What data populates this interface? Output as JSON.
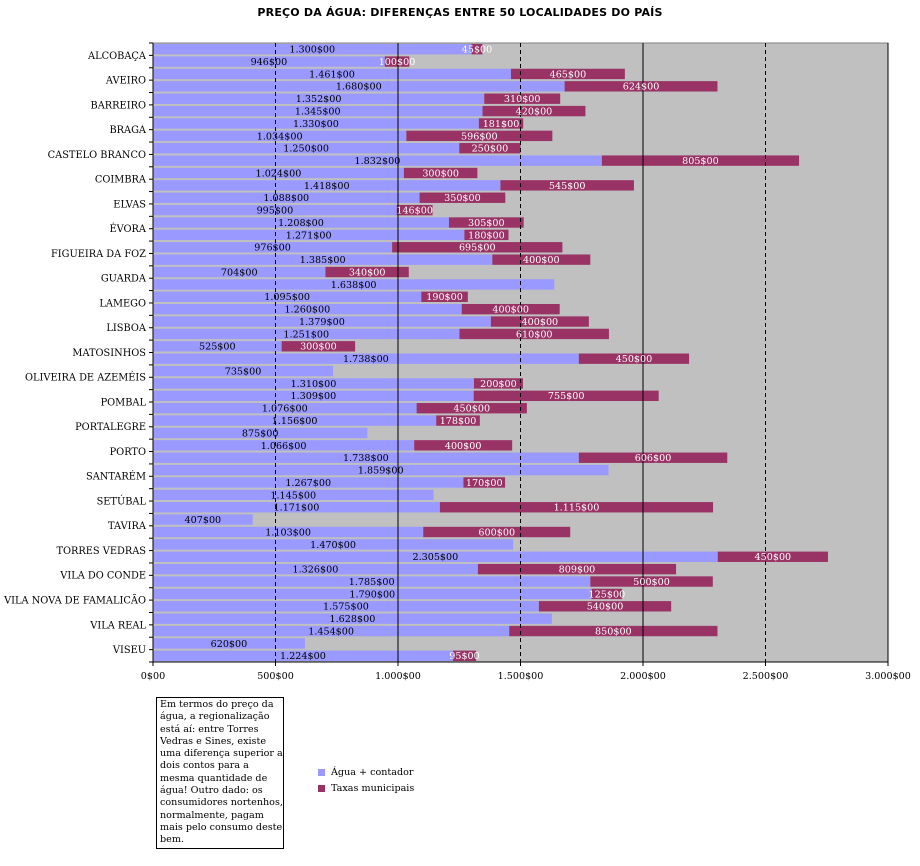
{
  "title": "PREÇO DA ÁGUA: DIFERENÇAS ENTRE 50 LOCALIDADES DO PAÍS",
  "note": "Em termos do preço da água, a regionalização está aí: entre Torres Vedras e Sines, existe uma diferença superior a dois contos para a mesma quantidade de água! Outro dado: os consumidores nortenhos, normalmente, pagam mais pelo consumo deste bem.",
  "colors": {
    "agua": "#9999ff",
    "taxas": "#993366",
    "plot_bg": "#c0c0c0"
  },
  "chart_data": {
    "type": "bar",
    "orientation": "horizontal",
    "stacked": true,
    "title": "PREÇO DA ÁGUA: DIFERENÇAS ENTRE 50 LOCALIDADES DO PAÍS",
    "xlim": [
      0,
      3000
    ],
    "x_ticks": [
      "0$00",
      "500$00",
      "1.000$00",
      "1.500$00",
      "2.000$00",
      "2.500$00",
      "3.000$00"
    ],
    "y_labels": [
      "ALCOBAÇA",
      "AVEIRO",
      "BARREIRO",
      "BRAGA",
      "CASTELO BRANCO",
      "COIMBRA",
      "ELVAS",
      "ÉVORA",
      "FIGUEIRA DA FOZ",
      "GUARDA",
      "LAMEGO",
      "LISBOA",
      "MATOSINHOS",
      "OLIVEIRA DE AZEMÉIS",
      "POMBAL",
      "PORTALEGRE",
      "PORTO",
      "SANTARÉM",
      "SETÚBAL",
      "TAVIRA",
      "TORRES VEDRAS",
      "VILA DO CONDE",
      "VILA NOVA DE FAMALICÃO",
      "VILA REAL",
      "VISEU"
    ],
    "legend": [
      "Água + contador",
      "Taxas municipais"
    ],
    "bars": [
      {
        "a": 1300,
        "al": "1.300$00",
        "t": 45,
        "tl": "45$00"
      },
      {
        "a": 946,
        "al": "946$00",
        "t": 100,
        "tl": "100$00"
      },
      {
        "a": 1461,
        "al": "1.461$00",
        "t": 465,
        "tl": "465$00"
      },
      {
        "a": 1680,
        "al": "1.680$00",
        "t": 624,
        "tl": "624$00"
      },
      {
        "a": 1352,
        "al": "1.352$00",
        "t": 310,
        "tl": "310$00"
      },
      {
        "a": 1345,
        "al": "1.345$00",
        "t": 420,
        "tl": "420$00"
      },
      {
        "a": 1330,
        "al": "1.330$00",
        "t": 181,
        "tl": "181$00"
      },
      {
        "a": 1034,
        "al": "1.034$00",
        "t": 596,
        "tl": "596$00"
      },
      {
        "a": 1250,
        "al": "1.250$00",
        "t": 250,
        "tl": "250$00"
      },
      {
        "a": 1832,
        "al": "1.832$00",
        "t": 805,
        "tl": "805$00"
      },
      {
        "a": 1024,
        "al": "1.024$00",
        "t": 300,
        "tl": "300$00"
      },
      {
        "a": 1418,
        "al": "1.418$00",
        "t": 545,
        "tl": "545$00"
      },
      {
        "a": 1088,
        "al": "1.088$00",
        "t": 350,
        "tl": "350$00"
      },
      {
        "a": 995,
        "al": "995$00",
        "t": 146,
        "tl": "146$00"
      },
      {
        "a": 1208,
        "al": "1.208$00",
        "t": 305,
        "tl": "305$00"
      },
      {
        "a": 1271,
        "al": "1.271$00",
        "t": 180,
        "tl": "180$00"
      },
      {
        "a": 976,
        "al": "976$00",
        "t": 695,
        "tl": "695$00"
      },
      {
        "a": 1385,
        "al": "1.385$00",
        "t": 400,
        "tl": "400$00"
      },
      {
        "a": 704,
        "al": "704$00",
        "t": 340,
        "tl": "340$00"
      },
      {
        "a": 1638,
        "al": "1.638$00",
        "t": 0,
        "tl": ""
      },
      {
        "a": 1095,
        "al": "1.095$00",
        "t": 190,
        "tl": "190$00"
      },
      {
        "a": 1260,
        "al": "1.260$00",
        "t": 400,
        "tl": "400$00"
      },
      {
        "a": 1379,
        "al": "1.379$00",
        "t": 400,
        "tl": "400$00"
      },
      {
        "a": 1251,
        "al": "1.251$00",
        "t": 610,
        "tl": "610$00"
      },
      {
        "a": 525,
        "al": "525$00",
        "t": 300,
        "tl": "300$00"
      },
      {
        "a": 1738,
        "al": "1.738$00",
        "t": 450,
        "tl": "450$00"
      },
      {
        "a": 735,
        "al": "735$00",
        "t": 0,
        "tl": ""
      },
      {
        "a": 1310,
        "al": "1.310$00",
        "t": 200,
        "tl": "200$00"
      },
      {
        "a": 1309,
        "al": "1.309$00",
        "t": 755,
        "tl": "755$00"
      },
      {
        "a": 1076,
        "al": "1.076$00",
        "t": 450,
        "tl": "450$00"
      },
      {
        "a": 1156,
        "al": "1.156$00",
        "t": 178,
        "tl": "178$00"
      },
      {
        "a": 875,
        "al": "875$00",
        "t": 0,
        "tl": ""
      },
      {
        "a": 1066,
        "al": "1.066$00",
        "t": 400,
        "tl": "400$00"
      },
      {
        "a": 1738,
        "al": "1.738$00",
        "t": 606,
        "tl": "606$00"
      },
      {
        "a": 1859,
        "al": "1.859$00",
        "t": 0,
        "tl": ""
      },
      {
        "a": 1267,
        "al": "1.267$00",
        "t": 170,
        "tl": "170$00"
      },
      {
        "a": 1145,
        "al": "1.145$00",
        "t": 0,
        "tl": ""
      },
      {
        "a": 1171,
        "al": "1.171$00",
        "t": 1115,
        "tl": "1.115$00"
      },
      {
        "a": 407,
        "al": "407$00",
        "t": 0,
        "tl": ""
      },
      {
        "a": 1103,
        "al": "1.103$00",
        "t": 600,
        "tl": "600$00"
      },
      {
        "a": 1470,
        "al": "1.470$00",
        "t": 0,
        "tl": ""
      },
      {
        "a": 2305,
        "al": "2.305$00",
        "t": 450,
        "tl": "450$00"
      },
      {
        "a": 1326,
        "al": "1.326$00",
        "t": 809,
        "tl": "809$00"
      },
      {
        "a": 1785,
        "al": "1.785$00",
        "t": 500,
        "tl": "500$00"
      },
      {
        "a": 1790,
        "al": "1.790$00",
        "t": 125,
        "tl": "125$00"
      },
      {
        "a": 1575,
        "al": "1.575$00",
        "t": 540,
        "tl": "540$00"
      },
      {
        "a": 1628,
        "al": "1.628$00",
        "t": 0,
        "tl": ""
      },
      {
        "a": 1454,
        "al": "1.454$00",
        "t": 850,
        "tl": "850$00"
      },
      {
        "a": 620,
        "al": "620$00",
        "t": 0,
        "tl": ""
      },
      {
        "a": 1224,
        "al": "1.224$00",
        "t": 95,
        "tl": "95$00"
      }
    ]
  }
}
